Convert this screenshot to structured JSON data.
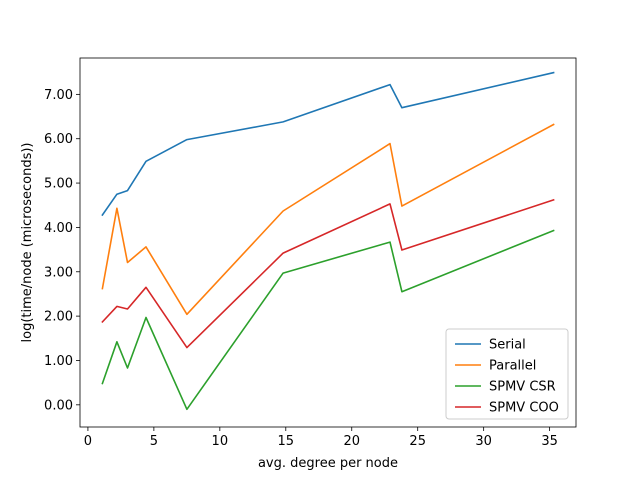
{
  "chart_data": {
    "type": "line",
    "title": "",
    "xlabel": "avg. degree per node",
    "ylabel": "log(time/node (microseconds))",
    "xlim": [
      -0.6,
      37.0
    ],
    "ylim": [
      -0.5,
      7.82
    ],
    "xticks": [
      0,
      5,
      10,
      15,
      20,
      25,
      30,
      35
    ],
    "xtick_labels": [
      "0",
      "5",
      "10",
      "15",
      "20",
      "25",
      "30",
      "35"
    ],
    "yticks": [
      0,
      1,
      2,
      3,
      4,
      5,
      6,
      7
    ],
    "ytick_labels": [
      "0.00",
      "1.00",
      "2.00",
      "3.00",
      "4.00",
      "5.00",
      "6.00",
      "7.00"
    ],
    "grid": false,
    "legend_position": "lower-right",
    "x": [
      1.1,
      2.2,
      3.0,
      4.4,
      7.5,
      14.8,
      22.9,
      23.8,
      35.3
    ],
    "series": [
      {
        "name": "Serial",
        "color": "#1f77b4",
        "values": [
          4.28,
          4.75,
          4.83,
          5.49,
          5.98,
          6.38,
          7.22,
          6.7,
          7.49
        ]
      },
      {
        "name": "Parallel",
        "color": "#ff7f0e",
        "values": [
          2.62,
          4.43,
          3.21,
          3.56,
          2.04,
          4.37,
          5.89,
          4.48,
          6.32
        ]
      },
      {
        "name": "SPMV CSR",
        "color": "#2ca02c",
        "values": [
          0.48,
          1.42,
          0.83,
          1.97,
          -0.1,
          2.97,
          3.67,
          2.55,
          3.93
        ]
      },
      {
        "name": "SPMV COO",
        "color": "#d62728",
        "values": [
          1.87,
          2.22,
          2.16,
          2.65,
          1.29,
          3.42,
          4.53,
          3.49,
          4.62
        ]
      }
    ]
  }
}
